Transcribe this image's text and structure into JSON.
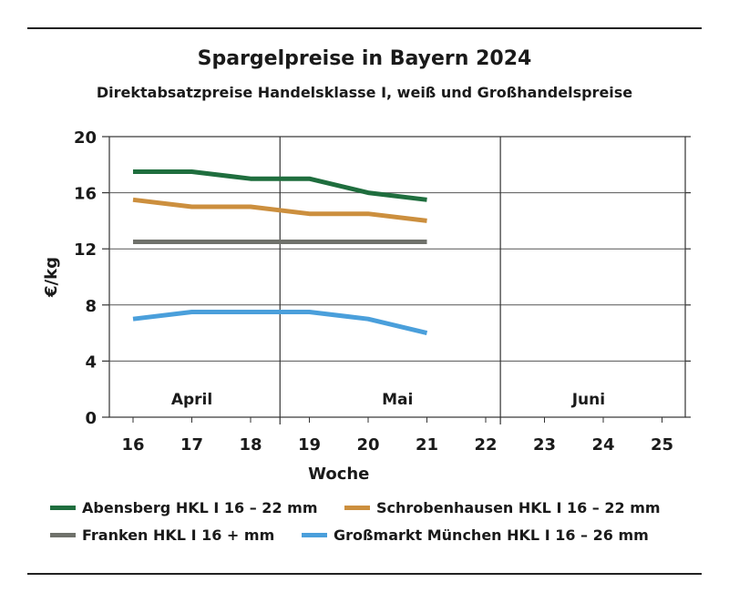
{
  "chart_data": {
    "type": "line",
    "title": "Spargelpreise in Bayern 2024",
    "subtitle": "Direktabsatzpreise Handelsklasse I, weiß und Großhandelspreise",
    "xlabel": "Woche",
    "ylabel": "€/kg",
    "ylim": [
      0,
      20
    ],
    "yticks": [
      0,
      4,
      8,
      12,
      16,
      20
    ],
    "xlim": [
      16,
      25
    ],
    "xticks": [
      16,
      17,
      18,
      19,
      20,
      21,
      22,
      23,
      24,
      25
    ],
    "months": [
      {
        "label": "April",
        "center": 17.0
      },
      {
        "label": "Mai",
        "center": 20.5
      },
      {
        "label": "Juni",
        "center": 23.75
      }
    ],
    "series": [
      {
        "name": "Abensberg HKL I 16 – 22 mm",
        "color": "#1f6e3e",
        "x": [
          16,
          17,
          18,
          19,
          20,
          21
        ],
        "values": [
          17.5,
          17.5,
          17.0,
          17.0,
          16.0,
          15.5
        ]
      },
      {
        "name": "Schrobenhausen HKL I 16 – 22 mm",
        "color": "#cc8f3e",
        "x": [
          16,
          17,
          18,
          19,
          20,
          21
        ],
        "values": [
          15.5,
          15.0,
          15.0,
          14.5,
          14.5,
          14.0
        ]
      },
      {
        "name": "Franken HKL I 16 + mm",
        "color": "#6f716b",
        "x": [
          16,
          17,
          18,
          19,
          20,
          21
        ],
        "values": [
          12.5,
          12.5,
          12.5,
          12.5,
          12.5,
          12.5
        ]
      },
      {
        "name": "Großmarkt München HKL I 16 – 26 mm",
        "color": "#4a9fdb",
        "x": [
          16,
          17,
          18,
          19,
          20,
          21
        ],
        "values": [
          7.0,
          7.5,
          7.5,
          7.5,
          7.0,
          6.0
        ]
      }
    ],
    "grid": true,
    "legend": "bottom"
  }
}
